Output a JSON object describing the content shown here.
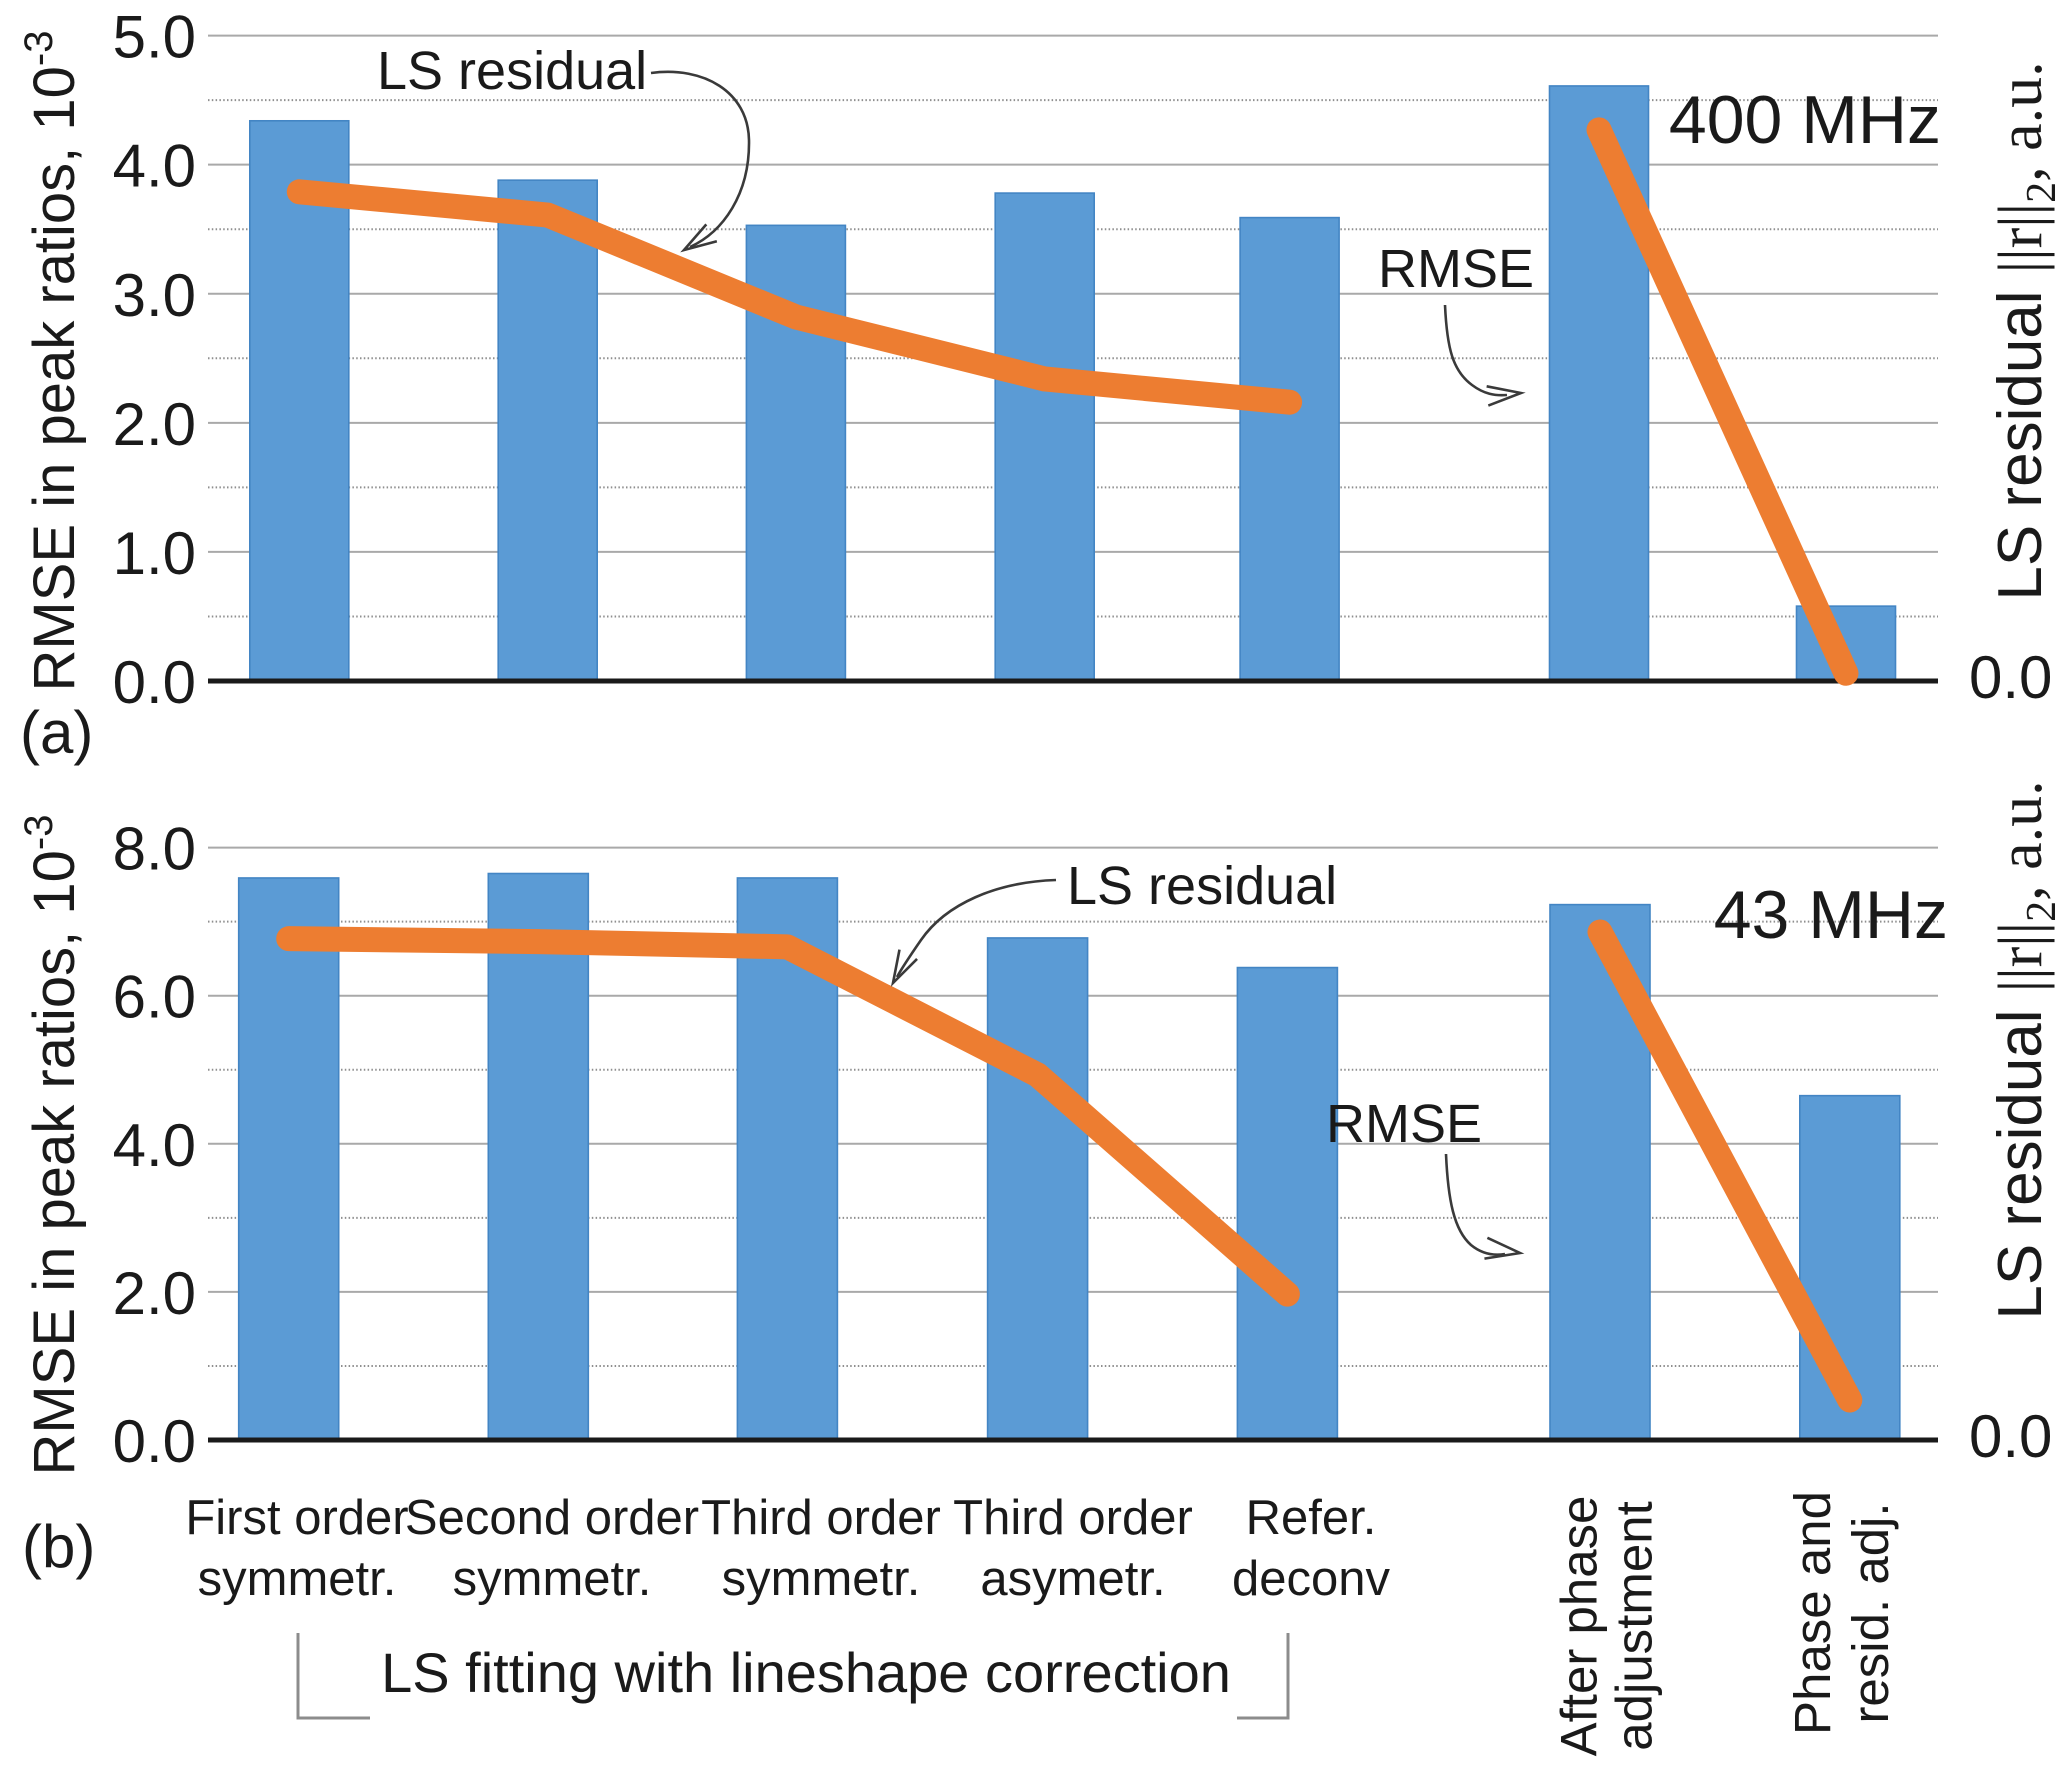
{
  "figure": {
    "panel_a_label": "(a)",
    "panel_b_label": "(b)",
    "group_bracket_label": "LS fitting with lineshape correction"
  },
  "colors": {
    "bar_fill": "#5B9BD5",
    "bar_border": "#4385C4",
    "line": "#ED7D31",
    "grid_major": "#A9A9A9",
    "grid_minor": "#8F8F8F",
    "axis": "#1A1A1A",
    "text": "#1A1A1A",
    "annotation_stroke": "#3A3A3A",
    "bracket_stroke": "#8C8C8C"
  },
  "categories": [
    {
      "line1": "First order",
      "line2": "symmetr.",
      "rotated": false
    },
    {
      "line1": "Second order",
      "line2": "symmetr.",
      "rotated": false
    },
    {
      "line1": "Third  order",
      "line2": "symmetr.",
      "rotated": false
    },
    {
      "line1": "Third  order",
      "line2": "asymetr.",
      "rotated": false
    },
    {
      "line1": "Refer.",
      "line2": "deconv",
      "rotated": false
    },
    {
      "line1": "After phase",
      "line2": "adjustment",
      "rotated": true
    },
    {
      "line1": "Phase and",
      "line2": "resid. adj.",
      "rotated": true
    }
  ],
  "chart_data": [
    {
      "id": "panel-a",
      "type": "bar",
      "title_annotation": "400 MHz",
      "xlabel": "",
      "ylabel_left": {
        "text": "RMSE in peak ratios, 10",
        "superscript": "-3"
      },
      "ylabel_right": {
        "prefix": "LS residual ",
        "norm": "||r||",
        "subscript": "2",
        "suffix": ", a.u."
      },
      "categories": [
        "First order symmetr.",
        "Second order symmetr.",
        "Third order symmetr.",
        "Third order asymetr.",
        "Refer. deconv",
        "After phase adjustment",
        "Phase and resid. adj."
      ],
      "ylim_left": [
        0.0,
        5.0
      ],
      "yaxis_left_ticks": [
        "0.0",
        "1.0",
        "2.0",
        "3.0",
        "4.0",
        "5.0"
      ],
      "yaxis_left_tick_values": [
        0,
        1,
        2,
        3,
        4,
        5
      ],
      "yaxis_minor_tick_values": [
        0.5,
        1.5,
        2.5,
        3.5,
        4.5
      ],
      "yaxis_right_tick": "0.0",
      "grid": true,
      "legend": "none",
      "series": [
        {
          "name": "RMSE",
          "type": "bar",
          "axis": "left",
          "values": [
            4.34,
            3.88,
            3.53,
            3.78,
            3.59,
            4.61,
            0.58
          ]
        },
        {
          "name": "LS residual",
          "type": "line",
          "axis": "right (a.u., same pixel scale as left)",
          "values": [
            3.79,
            3.61,
            2.82,
            2.34,
            2.16,
            4.27,
            0.06
          ],
          "gap_after_index": 4
        }
      ],
      "annotations": {
        "line_label": "LS residual",
        "bar_label": "RMSE"
      }
    },
    {
      "id": "panel-b",
      "type": "bar",
      "title_annotation": "43 MHz",
      "xlabel": "",
      "ylabel_left": {
        "text": "RMSE in peak ratios, 10",
        "superscript": "-3"
      },
      "ylabel_right": {
        "prefix": "LS residual ",
        "norm": "||r||",
        "subscript": "2",
        "suffix": ", a.u."
      },
      "categories": [
        "First order symmetr.",
        "Second order symmetr.",
        "Third order symmetr.",
        "Third order asymetr.",
        "Refer. deconv",
        "After phase adjustment",
        "Phase and resid. adj."
      ],
      "ylim_left": [
        0.0,
        8.0
      ],
      "yaxis_left_ticks": [
        "0.0",
        "2.0",
        "4.0",
        "6.0",
        "8.0"
      ],
      "yaxis_left_tick_values": [
        0,
        2,
        4,
        6,
        8
      ],
      "yaxis_minor_tick_values": [
        1,
        3,
        5,
        7
      ],
      "yaxis_right_tick": "0.0",
      "grid": true,
      "legend": "none",
      "series": [
        {
          "name": "RMSE",
          "type": "bar",
          "axis": "left",
          "values": [
            7.59,
            7.65,
            7.59,
            6.78,
            6.38,
            7.23,
            4.65
          ]
        },
        {
          "name": "LS residual",
          "type": "line",
          "axis": "right (a.u., same pixel scale as left)",
          "values": [
            6.77,
            6.73,
            6.66,
            4.93,
            1.97,
            6.86,
            0.54
          ],
          "gap_after_index": 4
        }
      ],
      "annotations": {
        "line_label": "LS residual",
        "bar_label": "RMSE"
      }
    }
  ]
}
